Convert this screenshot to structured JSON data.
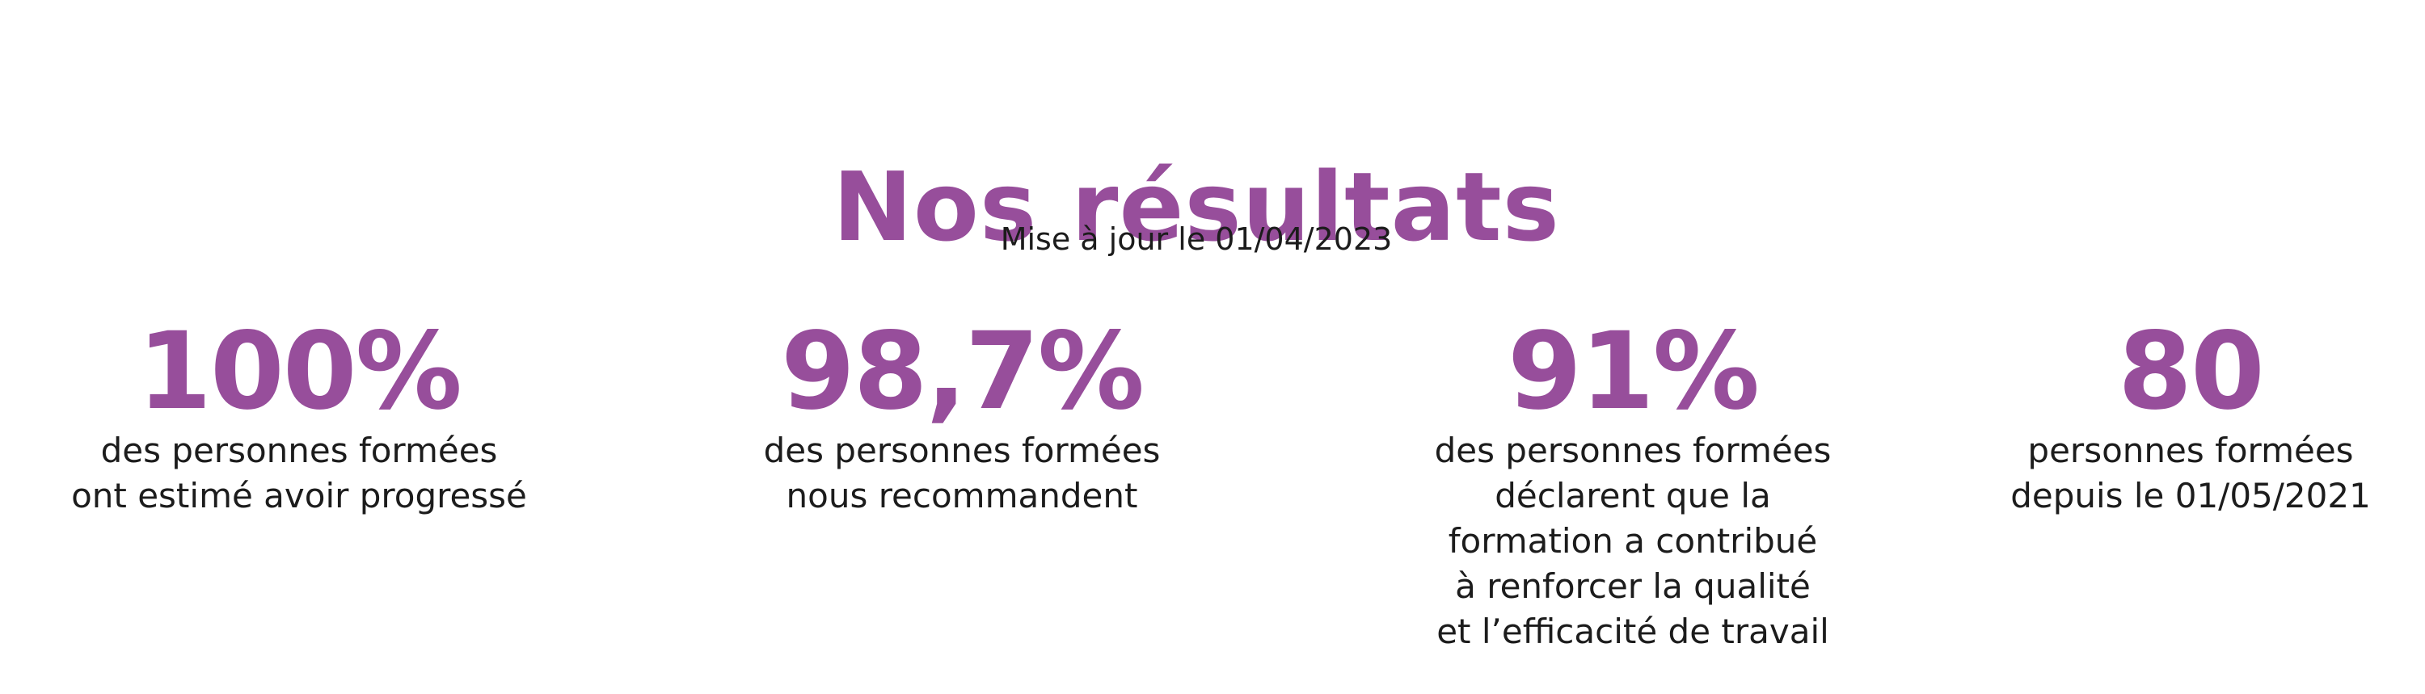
{
  "page": {
    "title": "Nos résultats",
    "updated": "Mise à jour le 01/04/2023"
  },
  "stats": [
    {
      "value": "100%",
      "description": "des personnes formées\nont estimé avoir progressé"
    },
    {
      "value": "98,7%",
      "description": "des personnes formées\nnous recommandent"
    },
    {
      "value": "91%",
      "description": "des personnes formées\ndéclarent que la\nformation a contribué\nà renforcer la qualité\net l’efficacité de travail"
    },
    {
      "value": "80",
      "description": "personnes formées\ndepuis le 01/05/2021"
    }
  ],
  "colors": {
    "accent": "#974e9b",
    "text": "#1c1c1c",
    "background": "#ffffff"
  }
}
